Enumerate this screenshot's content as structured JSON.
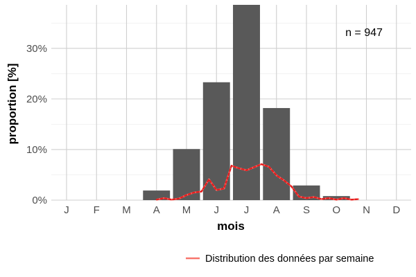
{
  "chart_data": {
    "type": "bar",
    "xlabel": "mois",
    "ylabel": "proportion [%]",
    "categories": [
      "J",
      "F",
      "M",
      "A",
      "M",
      "J",
      "J",
      "A",
      "S",
      "O",
      "N",
      "D"
    ],
    "values": [
      0,
      0,
      0,
      1.9,
      10.1,
      23.3,
      38.6,
      18.2,
      2.9,
      0.8,
      0,
      0
    ],
    "ylim": [
      0,
      38.6
    ],
    "yticks": [
      0,
      10,
      20,
      30
    ],
    "ytick_labels": [
      "0%",
      "10%",
      "20%",
      "30%"
    ],
    "grid": true,
    "bar_color": "#595959",
    "annotation": "n = 947",
    "overlay_line": {
      "name": "Distribution des données par semaine",
      "color": "#f8766d",
      "dot_color": "#e41a1c",
      "x": [
        3.0,
        3.25,
        3.5,
        3.75,
        4.0,
        4.25,
        4.5,
        4.75,
        5.0,
        5.25,
        5.5,
        5.75,
        6.0,
        6.25,
        6.5,
        6.75,
        7.0,
        7.25,
        7.5,
        7.75,
        8.0,
        8.25,
        8.5,
        8.75,
        9.0,
        9.25,
        9.5,
        9.75
      ],
      "y": [
        0.1,
        0.4,
        0.1,
        0.3,
        1.0,
        1.5,
        1.7,
        4.1,
        2.0,
        2.3,
        6.8,
        6.3,
        5.9,
        6.5,
        7.1,
        6.6,
        4.9,
        3.9,
        2.7,
        0.7,
        0.4,
        0.6,
        0.2,
        0.4,
        0.1,
        0.4,
        0.1,
        0.2
      ]
    },
    "legend": {
      "position": "bottom-right",
      "label": "Distribution des données par semaine"
    }
  }
}
